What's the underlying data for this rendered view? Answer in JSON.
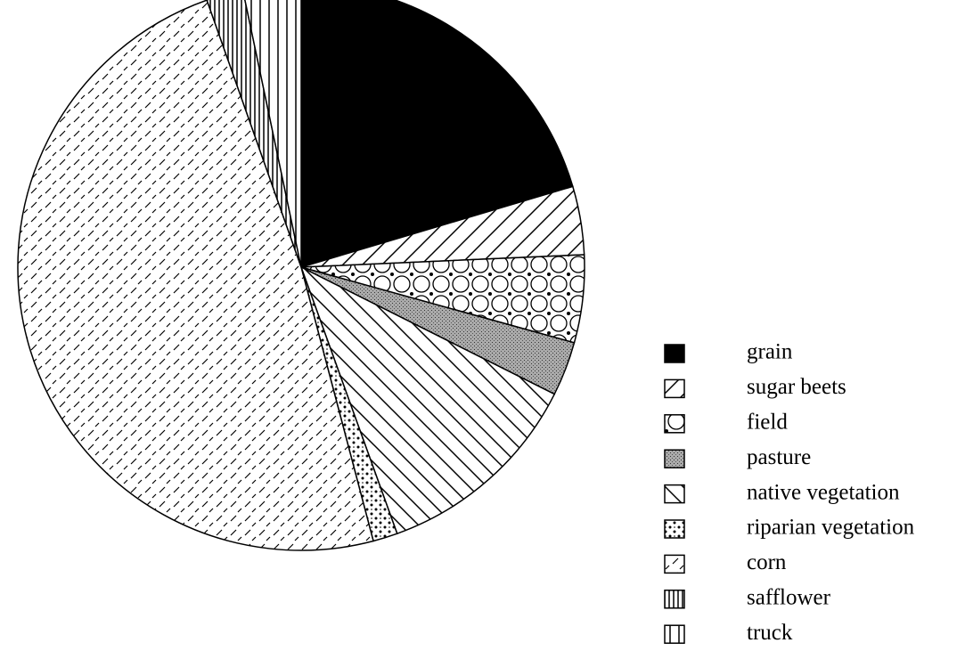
{
  "chart_data": {
    "type": "pie",
    "categories": [
      "grain",
      "sugar beets",
      "field",
      "pasture",
      "native vegetation",
      "riparian vegetation",
      "corn",
      "safflower",
      "truck"
    ],
    "values": [
      20.4,
      3.9,
      5,
      3.1,
      12.1,
      1.4,
      48.7,
      2.1,
      3.3
    ],
    "legend": "right"
  }
}
